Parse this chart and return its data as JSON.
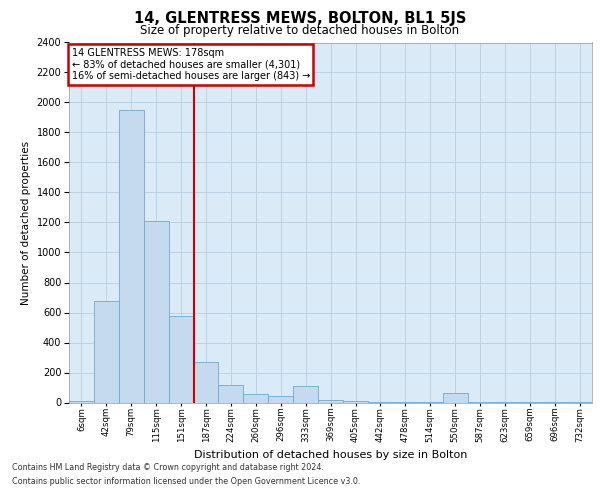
{
  "title": "14, GLENTRESS MEWS, BOLTON, BL1 5JS",
  "subtitle": "Size of property relative to detached houses in Bolton",
  "xlabel": "Distribution of detached houses by size in Bolton",
  "ylabel": "Number of detached properties",
  "bin_labels": [
    "6sqm",
    "42sqm",
    "79sqm",
    "115sqm",
    "151sqm",
    "187sqm",
    "224sqm",
    "260sqm",
    "296sqm",
    "333sqm",
    "369sqm",
    "405sqm",
    "442sqm",
    "478sqm",
    "514sqm",
    "550sqm",
    "587sqm",
    "623sqm",
    "659sqm",
    "696sqm",
    "732sqm"
  ],
  "bar_heights": [
    10,
    680,
    1950,
    1210,
    580,
    270,
    120,
    55,
    45,
    110,
    15,
    10,
    5,
    5,
    5,
    65,
    5,
    3,
    3,
    3,
    3
  ],
  "bar_color": "#c5d9ef",
  "bar_edge_color": "#6aabd2",
  "annotation_text_line1": "14 GLENTRESS MEWS: 178sqm",
  "annotation_text_line2": "← 83% of detached houses are smaller (4,301)",
  "annotation_text_line3": "16% of semi-detached houses are larger (843) →",
  "annotation_box_color": "#ffffff",
  "annotation_box_edge": "#cc0000",
  "vline_color": "#cc0000",
  "grid_color": "#b8cfe0",
  "plot_bg_color": "#daeaf7",
  "ylim": [
    0,
    2400
  ],
  "yticks": [
    0,
    200,
    400,
    600,
    800,
    1000,
    1200,
    1400,
    1600,
    1800,
    2000,
    2200,
    2400
  ],
  "footnote1": "Contains HM Land Registry data © Crown copyright and database right 2024.",
  "footnote2": "Contains public sector information licensed under the Open Government Licence v3.0."
}
